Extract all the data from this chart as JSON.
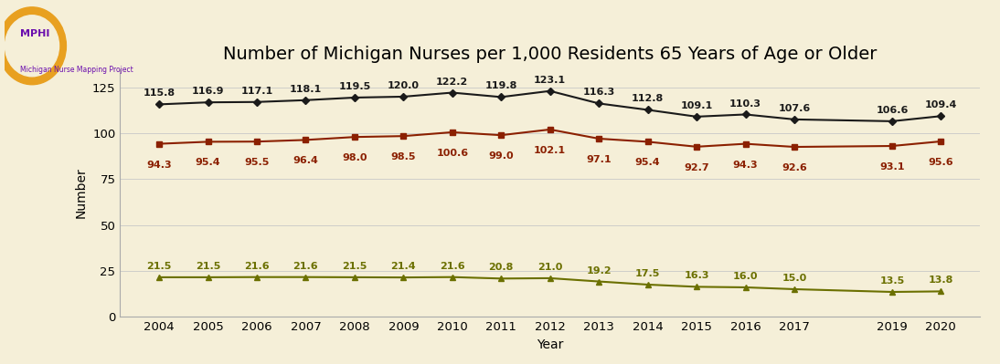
{
  "title": "Number of Michigan Nurses per 1,000 Residents 65 Years of Age or Older",
  "xlabel": "Year",
  "ylabel": "Number",
  "background_color": "#f5efd8",
  "years": [
    2004,
    2005,
    2006,
    2007,
    2008,
    2009,
    2010,
    2011,
    2012,
    2013,
    2014,
    2015,
    2016,
    2017,
    2019,
    2020
  ],
  "total": [
    115.8,
    116.9,
    117.1,
    118.1,
    119.5,
    120.0,
    122.2,
    119.8,
    123.1,
    116.3,
    112.8,
    109.1,
    110.3,
    107.6,
    106.6,
    109.4
  ],
  "rns": [
    94.3,
    95.4,
    95.5,
    96.4,
    98.0,
    98.5,
    100.6,
    99.0,
    102.1,
    97.1,
    95.4,
    92.7,
    94.3,
    92.6,
    93.1,
    95.6
  ],
  "lpns": [
    21.5,
    21.5,
    21.6,
    21.6,
    21.5,
    21.4,
    21.6,
    20.8,
    21.0,
    19.2,
    17.5,
    16.3,
    16.0,
    15.0,
    13.5,
    13.8
  ],
  "total_color": "#1a1a1a",
  "rns_color": "#8b2000",
  "lpns_color": "#6b7000",
  "ylim": [
    0,
    135
  ],
  "yticks": [
    0,
    25,
    50,
    75,
    100,
    125
  ],
  "title_fontsize": 14,
  "label_fontsize": 10,
  "tick_fontsize": 9.5,
  "annotation_fontsize": 8.0,
  "legend_fontsize": 10
}
